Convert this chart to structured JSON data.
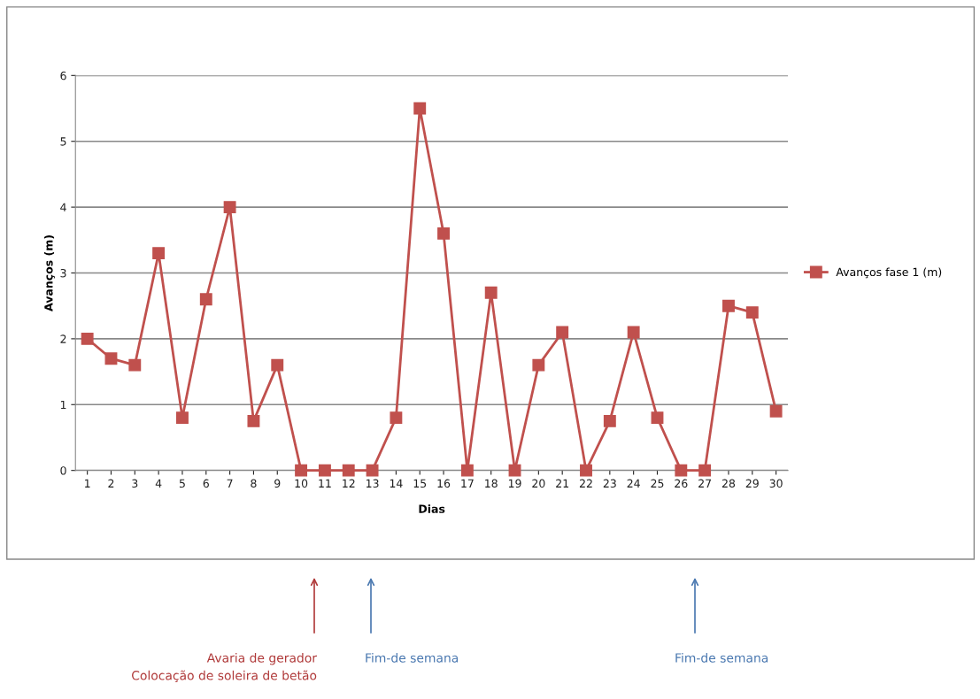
{
  "chart_data": {
    "type": "line",
    "xlabel": "Dias",
    "ylabel": "Avanços (m)",
    "categories": [
      "1",
      "2",
      "3",
      "4",
      "5",
      "6",
      "7",
      "8",
      "9",
      "10",
      "11",
      "12",
      "13",
      "14",
      "15",
      "16",
      "17",
      "18",
      "19",
      "20",
      "21",
      "22",
      "23",
      "24",
      "25",
      "26",
      "27",
      "28",
      "29",
      "30"
    ],
    "series": [
      {
        "name": "Avanços fase 1 (m)",
        "color": "#c0504d",
        "values": [
          2.0,
          1.7,
          1.6,
          3.3,
          0.8,
          2.6,
          4.0,
          0.75,
          1.6,
          0,
          0,
          0,
          0,
          0.8,
          5.5,
          3.6,
          0,
          2.7,
          0,
          1.6,
          2.1,
          0,
          0.75,
          2.1,
          0.8,
          0,
          0,
          2.5,
          2.4,
          0.9
        ]
      }
    ],
    "ylim": [
      0,
      6
    ],
    "yticks": [
      0,
      1,
      2,
      3,
      4,
      5,
      6
    ],
    "grid": "y",
    "legend": "right",
    "marker": "square",
    "line_style": "solid",
    "annotations": [
      "Avaria de gerador\nColocação de soleira de betão",
      "Fim-de semana",
      "Fim-de semana"
    ]
  }
}
